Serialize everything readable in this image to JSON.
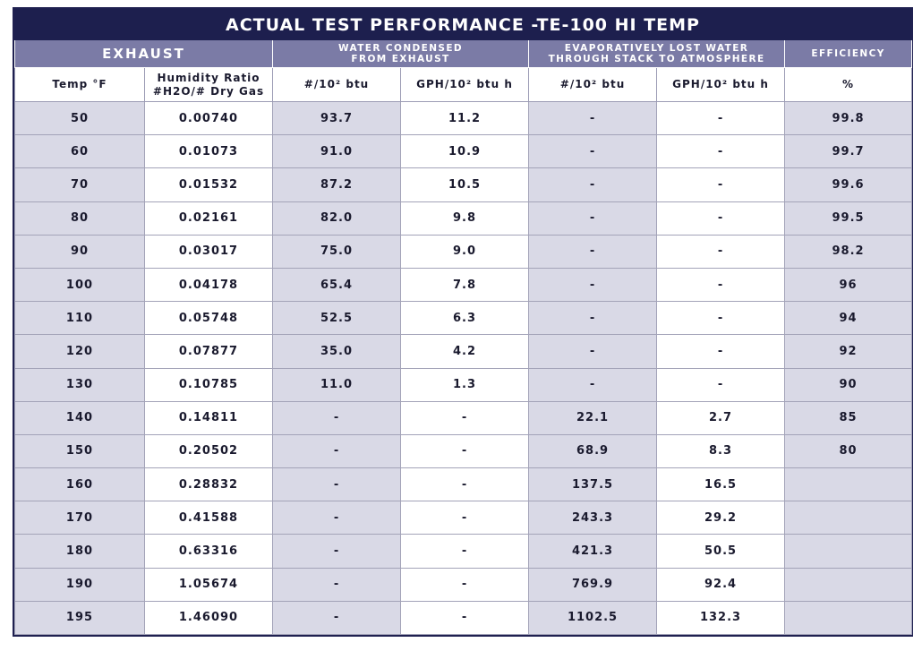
{
  "title": "ACTUAL TEST PERFORMANCE -TE-100 HI TEMP",
  "groups": {
    "exhaust": "EXHAUST",
    "condensed_line1": "WATER CONDENSED",
    "condensed_line2": "FROM EXHAUST",
    "evap_line1": "EVAPORATIVELY LOST WATER",
    "evap_line2": "THROUGH STACK TO ATMOSPHERE",
    "efficiency": "EFFICIENCY"
  },
  "columns": {
    "temp": "Temp °F",
    "humidity_line1": "Humidity Ratio",
    "humidity_line2": "#H2O/# Dry Gas",
    "cond_lb": "#/10² btu",
    "cond_gph": "GPH/10² btu h",
    "evap_lb": "#/10² btu",
    "evap_gph": "GPH/10² btu h",
    "eff": "%"
  },
  "rows": [
    {
      "temp": "50",
      "humidity": "0.00740",
      "cond_lb": "93.7",
      "cond_gph": "11.2",
      "evap_lb": "-",
      "evap_gph": "-",
      "eff": "99.8"
    },
    {
      "temp": "60",
      "humidity": "0.01073",
      "cond_lb": "91.0",
      "cond_gph": "10.9",
      "evap_lb": "-",
      "evap_gph": "-",
      "eff": "99.7"
    },
    {
      "temp": "70",
      "humidity": "0.01532",
      "cond_lb": "87.2",
      "cond_gph": "10.5",
      "evap_lb": "-",
      "evap_gph": "-",
      "eff": "99.6"
    },
    {
      "temp": "80",
      "humidity": "0.02161",
      "cond_lb": "82.0",
      "cond_gph": "9.8",
      "evap_lb": "-",
      "evap_gph": "-",
      "eff": "99.5"
    },
    {
      "temp": "90",
      "humidity": "0.03017",
      "cond_lb": "75.0",
      "cond_gph": "9.0",
      "evap_lb": "-",
      "evap_gph": "-",
      "eff": "98.2"
    },
    {
      "temp": "100",
      "humidity": "0.04178",
      "cond_lb": "65.4",
      "cond_gph": "7.8",
      "evap_lb": "-",
      "evap_gph": "-",
      "eff": "96"
    },
    {
      "temp": "110",
      "humidity": "0.05748",
      "cond_lb": "52.5",
      "cond_gph": "6.3",
      "evap_lb": "-",
      "evap_gph": "-",
      "eff": "94"
    },
    {
      "temp": "120",
      "humidity": "0.07877",
      "cond_lb": "35.0",
      "cond_gph": "4.2",
      "evap_lb": "-",
      "evap_gph": "-",
      "eff": "92"
    },
    {
      "temp": "130",
      "humidity": "0.10785",
      "cond_lb": "11.0",
      "cond_gph": "1.3",
      "evap_lb": "-",
      "evap_gph": "-",
      "eff": "90"
    },
    {
      "temp": "140",
      "humidity": "0.14811",
      "cond_lb": "-",
      "cond_gph": "-",
      "evap_lb": "22.1",
      "evap_gph": "2.7",
      "eff": "85"
    },
    {
      "temp": "150",
      "humidity": "0.20502",
      "cond_lb": "-",
      "cond_gph": "-",
      "evap_lb": "68.9",
      "evap_gph": "8.3",
      "eff": "80"
    },
    {
      "temp": "160",
      "humidity": "0.28832",
      "cond_lb": "-",
      "cond_gph": "-",
      "evap_lb": "137.5",
      "evap_gph": "16.5",
      "eff": ""
    },
    {
      "temp": "170",
      "humidity": "0.41588",
      "cond_lb": "-",
      "cond_gph": "-",
      "evap_lb": "243.3",
      "evap_gph": "29.2",
      "eff": ""
    },
    {
      "temp": "180",
      "humidity": "0.63316",
      "cond_lb": "-",
      "cond_gph": "-",
      "evap_lb": "421.3",
      "evap_gph": "50.5",
      "eff": ""
    },
    {
      "temp": "190",
      "humidity": "1.05674",
      "cond_lb": "-",
      "cond_gph": "-",
      "evap_lb": "769.9",
      "evap_gph": "92.4",
      "eff": ""
    },
    {
      "temp": "195",
      "humidity": "1.46090",
      "cond_lb": "-",
      "cond_gph": "-",
      "evap_lb": "1102.5",
      "evap_gph": "132.3",
      "eff": ""
    }
  ],
  "colors": {
    "title_bg": "#1d1f4e",
    "group_header_bg": "#7b7ba6",
    "shaded_cell": "#d9d9e6",
    "white_cell": "#ffffff"
  }
}
